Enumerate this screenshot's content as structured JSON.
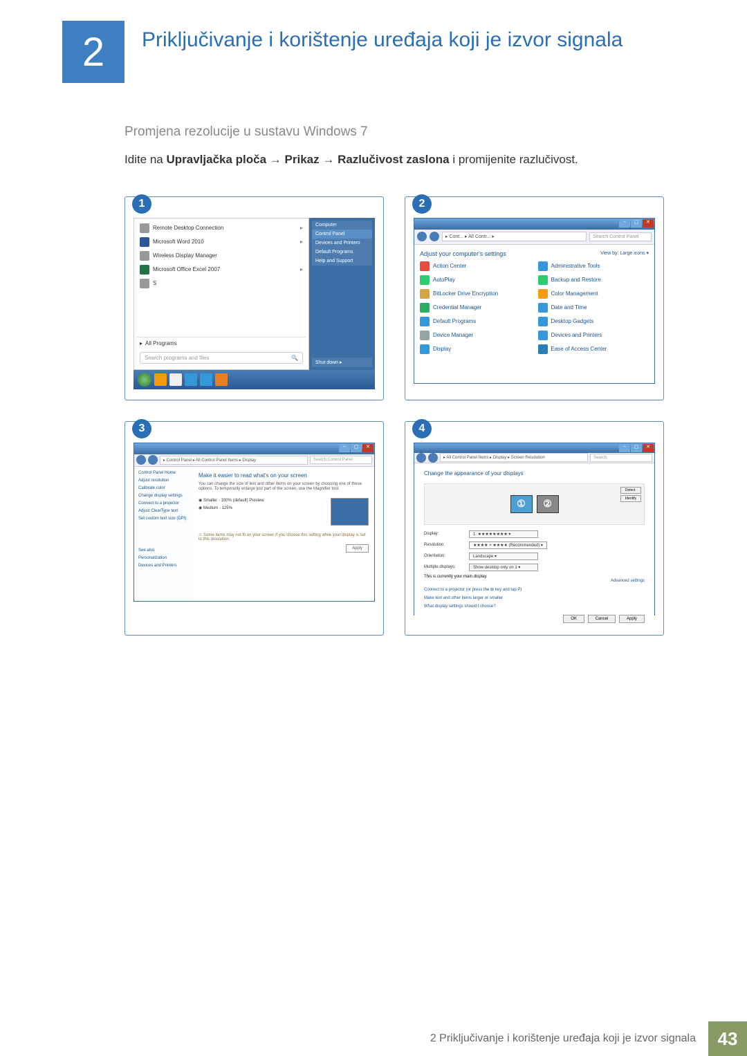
{
  "chapter": {
    "number": "2",
    "title": "Priključivanje i korištenje uređaja koji je izvor signala"
  },
  "subtitle": "Promjena rezolucije u sustavu Windows 7",
  "instruction_parts": {
    "p0": "Idite na ",
    "b1": "Upravljačka ploča",
    "a1": " → ",
    "b2": "Prikaz",
    "a2": " → ",
    "b3": "Razlučivost zaslona",
    "p1": " i promijenite razlučivost."
  },
  "panel1": {
    "num": "1",
    "left_items": [
      {
        "label": "Remote Desktop Connection",
        "ico": "r",
        "arrow": "▸"
      },
      {
        "label": "Microsoft Word 2010",
        "ico": "w",
        "arrow": "▸"
      },
      {
        "label": "Wireless Display Manager",
        "ico": "r",
        "arrow": ""
      },
      {
        "label": "Microsoft Office Excel 2007",
        "ico": "x",
        "arrow": "▸"
      },
      {
        "label": "S",
        "ico": "r",
        "arrow": ""
      }
    ],
    "all_programs": "All Programs",
    "all_programs_arrow": "▸",
    "search_placeholder": "Search programs and files",
    "search_icon": "🔍",
    "right_items": [
      "Computer",
      "Control Panel",
      "Devices and Printers",
      "Default Programs",
      "Help and Support"
    ],
    "shutdown": "Shut down  ▸",
    "taskbar_icons": [
      "#f39c12",
      "#f0f0f0",
      "#3498db",
      "#3498db",
      "#e67e22"
    ]
  },
  "panel2": {
    "num": "2",
    "path": "▸ Cont... ▸ All Contr... ▸",
    "search": "Search Control Panel",
    "heading": "Adjust your computer's settings",
    "view_by": "View by:   Large icons ▾",
    "items": [
      {
        "t": "Action Center",
        "c": "#e74c3c"
      },
      {
        "t": "Administrative Tools",
        "c": "#3498db"
      },
      {
        "t": "AutoPlay",
        "c": "#2ecc71"
      },
      {
        "t": "Backup and Restore",
        "c": "#2ecc71"
      },
      {
        "t": "BitLocker Drive Encryption",
        "c": "#d4a544"
      },
      {
        "t": "Color Management",
        "c": "#f39c12"
      },
      {
        "t": "Credential Manager",
        "c": "#27ae60"
      },
      {
        "t": "Date and Time",
        "c": "#3498db"
      },
      {
        "t": "Default Programs",
        "c": "#3498db"
      },
      {
        "t": "Desktop Gadgets",
        "c": "#3498db"
      },
      {
        "t": "Device Manager",
        "c": "#95a5a6"
      },
      {
        "t": "Devices and Printers",
        "c": "#3498db"
      },
      {
        "t": "Display",
        "c": "#3498db"
      },
      {
        "t": "Ease of Access Center",
        "c": "#2980b9"
      }
    ]
  },
  "panel3": {
    "num": "3",
    "path": "▸ Control Panel ▸ All Control Panel Items ▸ Display",
    "side": [
      "Control Panel Home",
      "Adjust resolution",
      "Calibrate color",
      "Change display settings",
      "Connect to a projector",
      "Adjust ClearType text",
      "Set custom text size (DPI)"
    ],
    "side_footer": [
      "See also",
      "Personalization",
      "Devices and Printers"
    ],
    "heading": "Make it easier to read what's on your screen",
    "body": "You can change the size of text and other items on your screen by choosing one of these options. To temporarily enlarge just part of the screen, use the Magnifier tool.",
    "opt1": "◉ Smaller - 100% (default)    Preview",
    "opt2": "◉ Medium - 125%",
    "warn": "⚠ Some items may not fit on your screen if you choose this setting while your display is set to this resolution.",
    "apply": "Apply"
  },
  "panel4": {
    "num": "4",
    "path": "▸ All Control Panel Items ▸ Display ▸ Screen Resolution",
    "heading": "Change the appearance of your displays",
    "mon1": "①",
    "mon2": "②",
    "detect": "Detect",
    "identify": "Identify",
    "rows": [
      {
        "l": "Display:",
        "v": "1. ★★★★★★★★ ▾"
      },
      {
        "l": "Resolution:",
        "v": "★★★★ × ★★★★ (Recommended) ▾"
      },
      {
        "l": "Orientation:",
        "v": "Landscape ▾"
      },
      {
        "l": "Multiple displays:",
        "v": "Show desktop only on 1 ▾"
      }
    ],
    "main_disp": "This is currently your main display.",
    "advanced": "Advanced settings",
    "link1": "Connect to a projector (or press the ⊞ key and tap P)",
    "link2": "Make text and other items larger or smaller",
    "link3": "What display settings should I choose?",
    "ok": "OK",
    "cancel": "Cancel",
    "apply": "Apply"
  },
  "footer": {
    "text": "2 Priključivanje i korištenje uređaja koji je izvor signala",
    "page": "43"
  }
}
